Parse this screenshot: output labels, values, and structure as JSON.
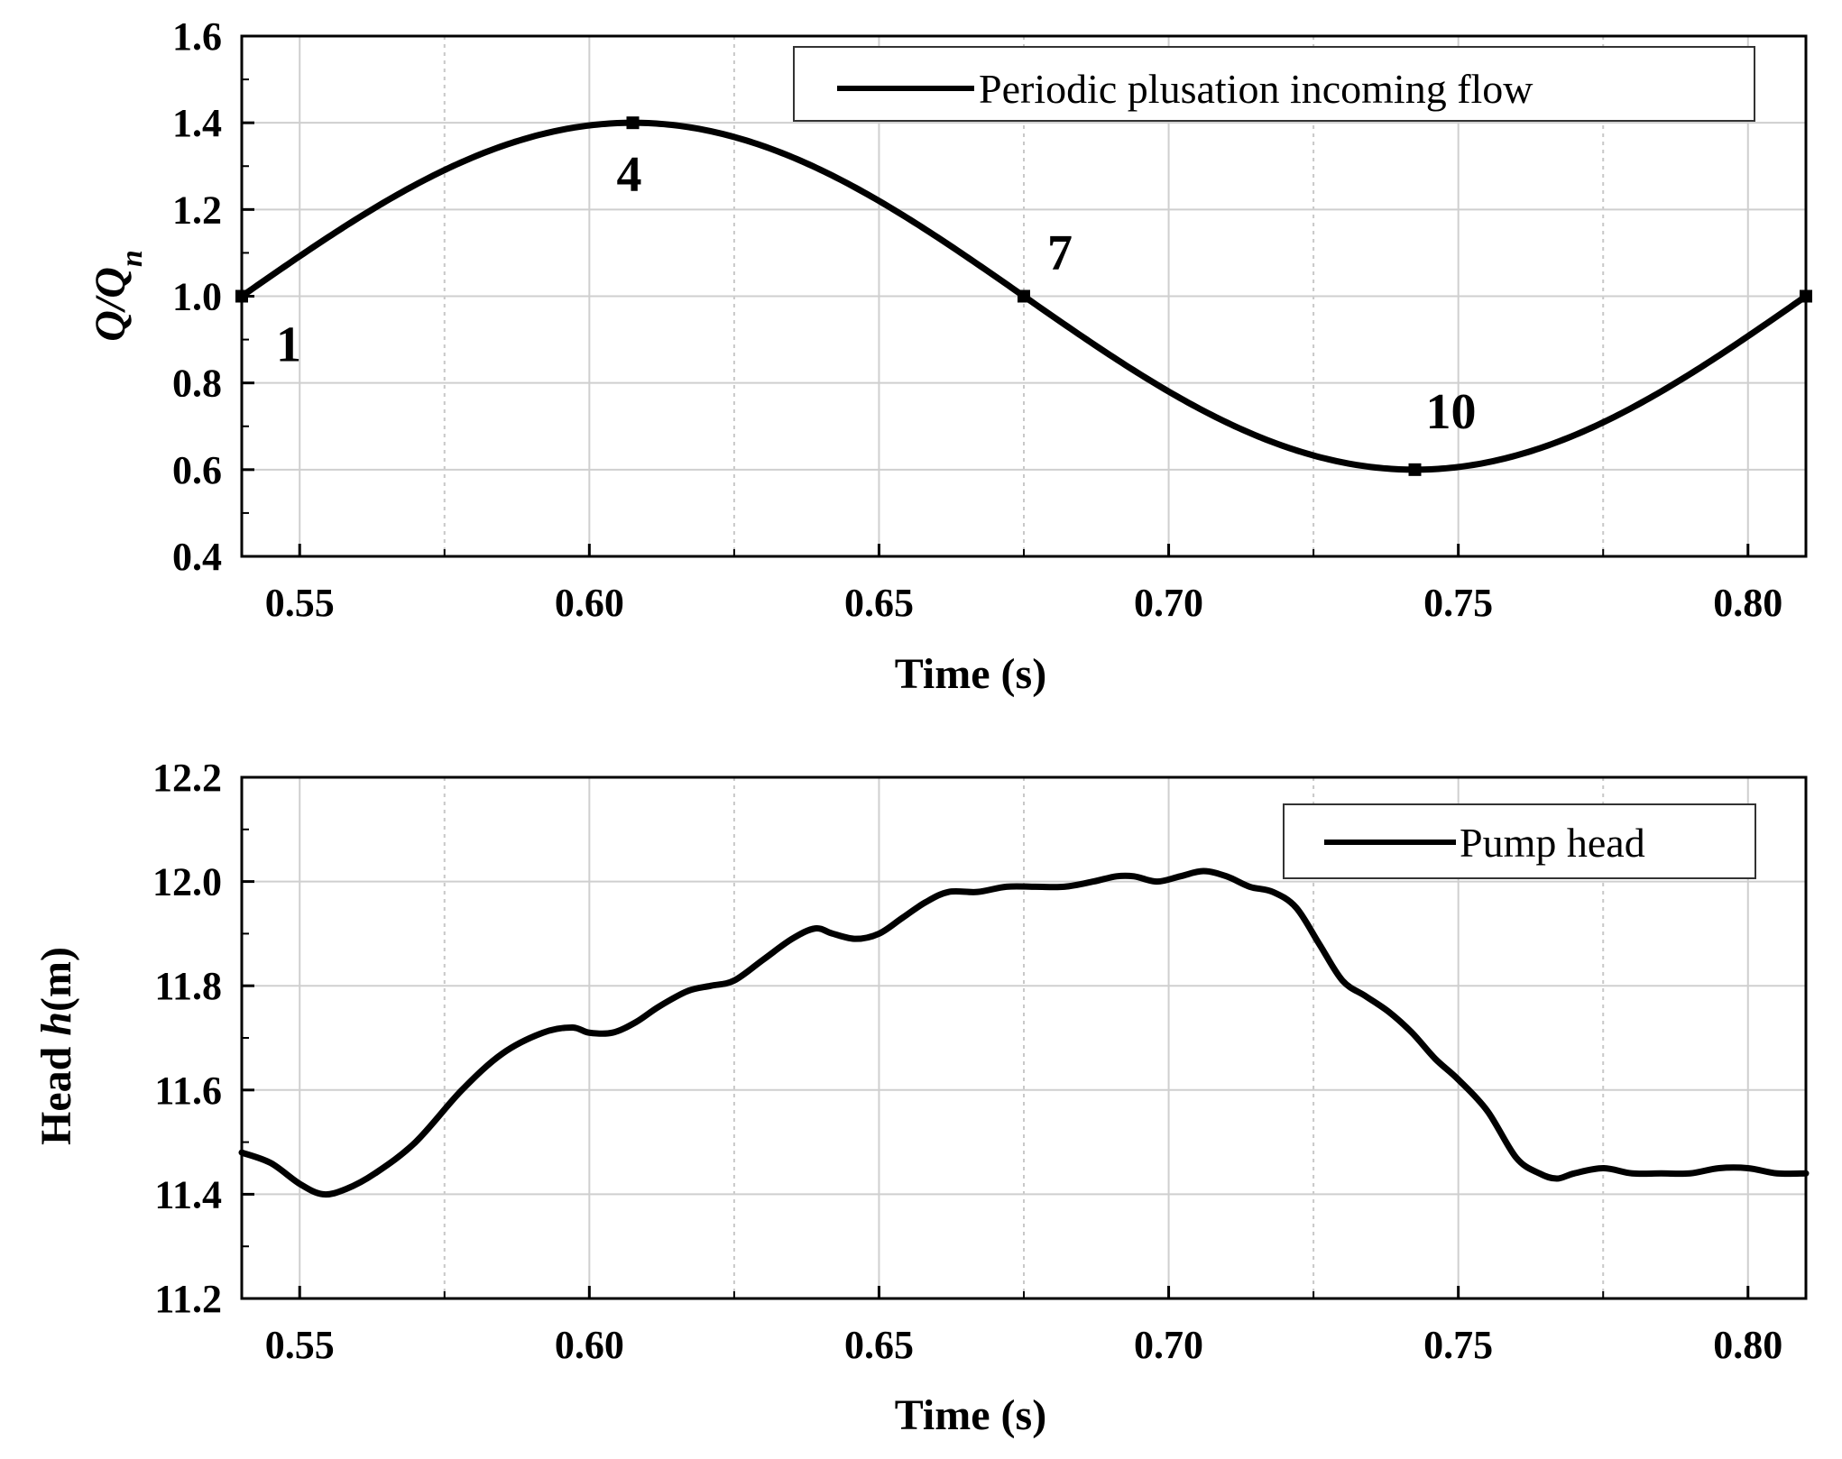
{
  "chart_data": [
    {
      "id": "top",
      "type": "line",
      "title": "",
      "xlabel": "Time (s)",
      "ylabel": "Q/Qn",
      "xlim": [
        0.54,
        0.81
      ],
      "ylim": [
        0.4,
        1.6
      ],
      "xticks": [
        0.55,
        0.6,
        0.65,
        0.7,
        0.75,
        0.8
      ],
      "xtick_labels": [
        "0.55",
        "0.60",
        "0.65",
        "0.70",
        "0.75",
        "0.80"
      ],
      "yticks": [
        0.4,
        0.6,
        0.8,
        1.0,
        1.2,
        1.4,
        1.6
      ],
      "ytick_labels": [
        "0.4",
        "0.6",
        "0.8",
        "1.0",
        "1.2",
        "1.4",
        "1.6"
      ],
      "grid": true,
      "legend": {
        "position": "top-right",
        "entries": [
          "Periodic plusation incoming flow"
        ]
      },
      "series": [
        {
          "name": "Periodic plusation incoming flow",
          "function": "sine",
          "t0": 0.54,
          "period": 0.27,
          "mean": 1.0,
          "amplitude": 0.4
        }
      ],
      "markers": [
        {
          "label": "1",
          "x": 0.54,
          "y": 1.0
        },
        {
          "label": "4",
          "x": 0.6075,
          "y": 1.4
        },
        {
          "label": "7",
          "x": 0.675,
          "y": 1.0
        },
        {
          "label": "10",
          "x": 0.7425,
          "y": 0.6
        },
        {
          "label": "",
          "x": 0.81,
          "y": 1.0
        }
      ]
    },
    {
      "id": "bottom",
      "type": "line",
      "title": "",
      "xlabel": "Time (s)",
      "ylabel": "Head h(m)",
      "xlim": [
        0.54,
        0.81
      ],
      "ylim": [
        11.2,
        12.2
      ],
      "xticks": [
        0.55,
        0.6,
        0.65,
        0.7,
        0.75,
        0.8
      ],
      "xtick_labels": [
        "0.55",
        "0.60",
        "0.65",
        "0.70",
        "0.75",
        "0.80"
      ],
      "yticks": [
        11.2,
        11.4,
        11.6,
        11.8,
        12.0,
        12.2
      ],
      "ytick_labels": [
        "11.2",
        "11.4",
        "11.6",
        "11.8",
        "12.0",
        "12.2"
      ],
      "grid": true,
      "legend": {
        "position": "top-right",
        "entries": [
          "Pump head"
        ]
      },
      "series": [
        {
          "name": "Pump head",
          "x": [
            0.54,
            0.545,
            0.55,
            0.554,
            0.558,
            0.563,
            0.57,
            0.578,
            0.585,
            0.592,
            0.597,
            0.6,
            0.604,
            0.608,
            0.612,
            0.617,
            0.621,
            0.625,
            0.63,
            0.635,
            0.639,
            0.642,
            0.646,
            0.65,
            0.654,
            0.658,
            0.662,
            0.667,
            0.672,
            0.677,
            0.682,
            0.687,
            0.691,
            0.694,
            0.698,
            0.702,
            0.706,
            0.71,
            0.714,
            0.718,
            0.722,
            0.726,
            0.73,
            0.734,
            0.738,
            0.742,
            0.746,
            0.75,
            0.755,
            0.76,
            0.764,
            0.767,
            0.77,
            0.775,
            0.78,
            0.785,
            0.79,
            0.795,
            0.8,
            0.805,
            0.81
          ],
          "y": [
            11.48,
            11.46,
            11.42,
            11.4,
            11.41,
            11.44,
            11.5,
            11.6,
            11.67,
            11.71,
            11.72,
            11.71,
            11.71,
            11.73,
            11.76,
            11.79,
            11.8,
            11.81,
            11.85,
            11.89,
            11.91,
            11.9,
            11.89,
            11.9,
            11.93,
            11.96,
            11.98,
            11.98,
            11.99,
            11.99,
            11.99,
            12.0,
            12.01,
            12.01,
            12.0,
            12.01,
            12.02,
            12.01,
            11.99,
            11.98,
            11.95,
            11.88,
            11.81,
            11.78,
            11.75,
            11.71,
            11.66,
            11.62,
            11.56,
            11.47,
            11.44,
            11.43,
            11.44,
            11.45,
            11.44,
            11.44,
            11.44,
            11.45,
            11.45,
            11.44,
            11.44
          ]
        }
      ]
    }
  ]
}
